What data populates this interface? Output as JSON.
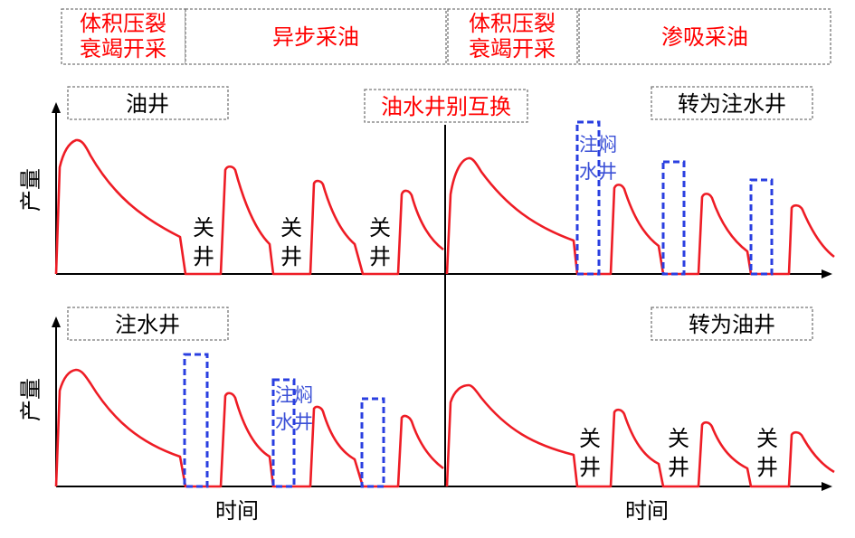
{
  "stages": {
    "s1_line1": "体积压裂",
    "s1_line2": "衰竭开采",
    "s2": "异步采油",
    "s3_line1": "体积压裂",
    "s3_line2": "衰竭开采",
    "s4": "渗吸采油"
  },
  "panels": {
    "tl": "油井",
    "center": "油水井别互换",
    "tr": "转为注水井",
    "bl": "注水井",
    "br": "转为油井"
  },
  "axes": {
    "y_top": "产量",
    "y_bottom": "产量",
    "x_left": "时间",
    "x_right": "时间"
  },
  "annotations": {
    "shut_line1": "关",
    "shut_line2": "井",
    "soak_line1": "注焖",
    "soak_line2": "水井"
  },
  "colors": {
    "stage_text": "#ff0000",
    "curve": "#ee1c25",
    "soak_box": "#2a3fe0",
    "soak_text": "#3a4fd6"
  }
}
